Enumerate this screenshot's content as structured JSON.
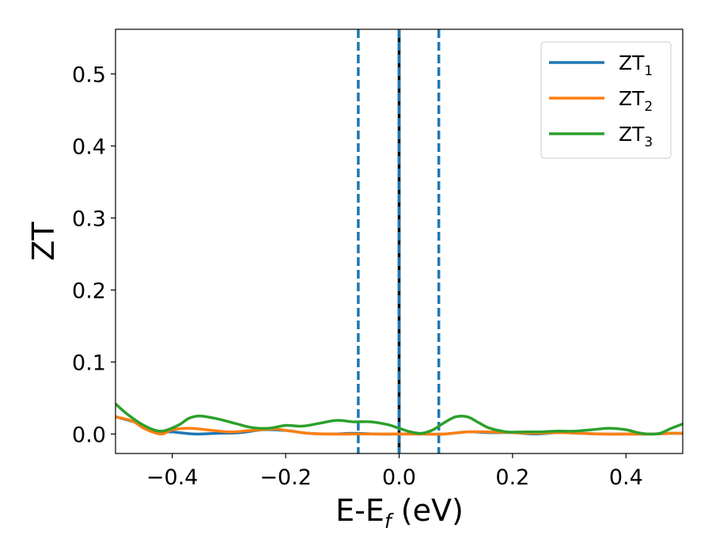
{
  "chart_data": {
    "type": "line",
    "xlabel_main": "E-E",
    "xlabel_sub": "f",
    "xlabel_unit": " (eV)",
    "ylabel": "ZT",
    "xlim": [
      -0.5,
      0.5
    ],
    "ylim": [
      -0.027,
      0.562
    ],
    "x_ticks": [
      -0.4,
      -0.2,
      0.0,
      0.2,
      0.4
    ],
    "x_tick_labels": [
      "−0.4",
      "−0.2",
      "0.0",
      "0.2",
      "0.4"
    ],
    "y_ticks": [
      0.0,
      0.1,
      0.2,
      0.3,
      0.4,
      0.5
    ],
    "y_tick_labels": [
      "0.0",
      "0.1",
      "0.2",
      "0.3",
      "0.4",
      "0.5"
    ],
    "grid": false,
    "legend_position": "top-right",
    "reference_lines": [
      {
        "x": -0.072,
        "style": "dashed",
        "color": "#1f77b4"
      },
      {
        "x": 0.0,
        "style": "solid",
        "color": "#000000"
      },
      {
        "x": 0.0,
        "style": "dashed",
        "color": "#1f77b4"
      },
      {
        "x": 0.07,
        "style": "dashed",
        "color": "#1f77b4"
      }
    ],
    "series": [
      {
        "name": "ZT",
        "name_sub": "1",
        "color": "#1f77b4",
        "x": [
          -0.5,
          -0.46,
          -0.43,
          -0.4,
          -0.36,
          -0.32,
          -0.28,
          -0.24,
          -0.2,
          -0.16,
          -0.12,
          -0.08,
          -0.04,
          0.0,
          0.04,
          0.08,
          0.12,
          0.16,
          0.2,
          0.24,
          0.28,
          0.32,
          0.36,
          0.4,
          0.44,
          0.48,
          0.5
        ],
        "y": [
          0.024,
          0.015,
          0.004,
          0.003,
          0.0,
          0.001,
          0.002,
          0.006,
          0.005,
          0.001,
          0.0,
          0.001,
          0.0,
          0.0,
          0.0,
          0.0,
          0.003,
          0.002,
          0.002,
          0.0,
          0.002,
          0.001,
          0.0,
          0.0,
          0.0,
          0.001,
          0.001
        ]
      },
      {
        "name": "ZT",
        "name_sub": "2",
        "color": "#ff7f0e",
        "x": [
          -0.5,
          -0.47,
          -0.45,
          -0.42,
          -0.4,
          -0.37,
          -0.34,
          -0.3,
          -0.26,
          -0.22,
          -0.19,
          -0.16,
          -0.12,
          -0.08,
          -0.04,
          0.0,
          0.04,
          0.08,
          0.12,
          0.16,
          0.2,
          0.24,
          0.28,
          0.32,
          0.36,
          0.4,
          0.44,
          0.48,
          0.5
        ],
        "y": [
          0.024,
          0.018,
          0.008,
          0.0,
          0.006,
          0.008,
          0.006,
          0.003,
          0.005,
          0.007,
          0.004,
          0.001,
          0.0,
          0.0,
          0.0,
          0.0,
          0.0,
          0.0,
          0.003,
          0.003,
          0.002,
          0.001,
          0.002,
          0.001,
          0.0,
          0.0,
          0.0,
          0.001,
          0.001
        ]
      },
      {
        "name": "ZT",
        "name_sub": "3",
        "color": "#2ca02c",
        "x": [
          -0.5,
          -0.48,
          -0.45,
          -0.42,
          -0.39,
          -0.37,
          -0.35,
          -0.32,
          -0.29,
          -0.26,
          -0.23,
          -0.2,
          -0.17,
          -0.14,
          -0.11,
          -0.08,
          -0.05,
          -0.02,
          0.0,
          0.02,
          0.04,
          0.06,
          0.08,
          0.1,
          0.12,
          0.14,
          0.16,
          0.19,
          0.22,
          0.25,
          0.28,
          0.31,
          0.34,
          0.37,
          0.4,
          0.42,
          0.44,
          0.46,
          0.48,
          0.5
        ],
        "y": [
          0.042,
          0.028,
          0.012,
          0.004,
          0.012,
          0.022,
          0.025,
          0.021,
          0.015,
          0.009,
          0.008,
          0.012,
          0.011,
          0.015,
          0.019,
          0.017,
          0.017,
          0.013,
          0.008,
          0.003,
          0.001,
          0.006,
          0.016,
          0.024,
          0.024,
          0.016,
          0.008,
          0.003,
          0.003,
          0.003,
          0.004,
          0.004,
          0.006,
          0.008,
          0.006,
          0.002,
          0.0,
          0.001,
          0.008,
          0.014
        ]
      }
    ]
  }
}
